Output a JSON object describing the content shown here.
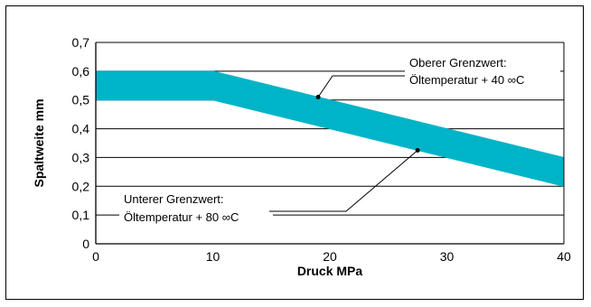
{
  "chart_data": {
    "type": "area",
    "xlabel": "Druck MPa",
    "ylabel": "Spaltweite mm",
    "xlim": [
      0,
      40
    ],
    "ylim": [
      0,
      0.7
    ],
    "x_ticks": [
      "0",
      "10",
      "20",
      "30",
      "40"
    ],
    "y_ticks": [
      "0",
      "0,1",
      "0,2",
      "0,3",
      "0,4",
      "0,5",
      "0,6",
      "0,7"
    ],
    "grid": "horizontal",
    "band_color": "#00b4c8",
    "series": [
      {
        "name": "Oberer Grenzwert",
        "x": [
          0,
          10,
          40
        ],
        "y": [
          0.6,
          0.6,
          0.3
        ]
      },
      {
        "name": "Unterer Grenzwert",
        "x": [
          0,
          10,
          40
        ],
        "y": [
          0.5,
          0.5,
          0.2
        ]
      }
    ],
    "annotations": [
      {
        "lines": [
          "Oberer Grenzwert:",
          "Öltemperatur + 40 ∞C"
        ],
        "point": [
          19,
          0.51
        ]
      },
      {
        "lines": [
          "Unterer Grenzwert:",
          "Öltemperatur + 80 ∞C"
        ],
        "point": [
          27.5,
          0.325
        ]
      }
    ]
  }
}
